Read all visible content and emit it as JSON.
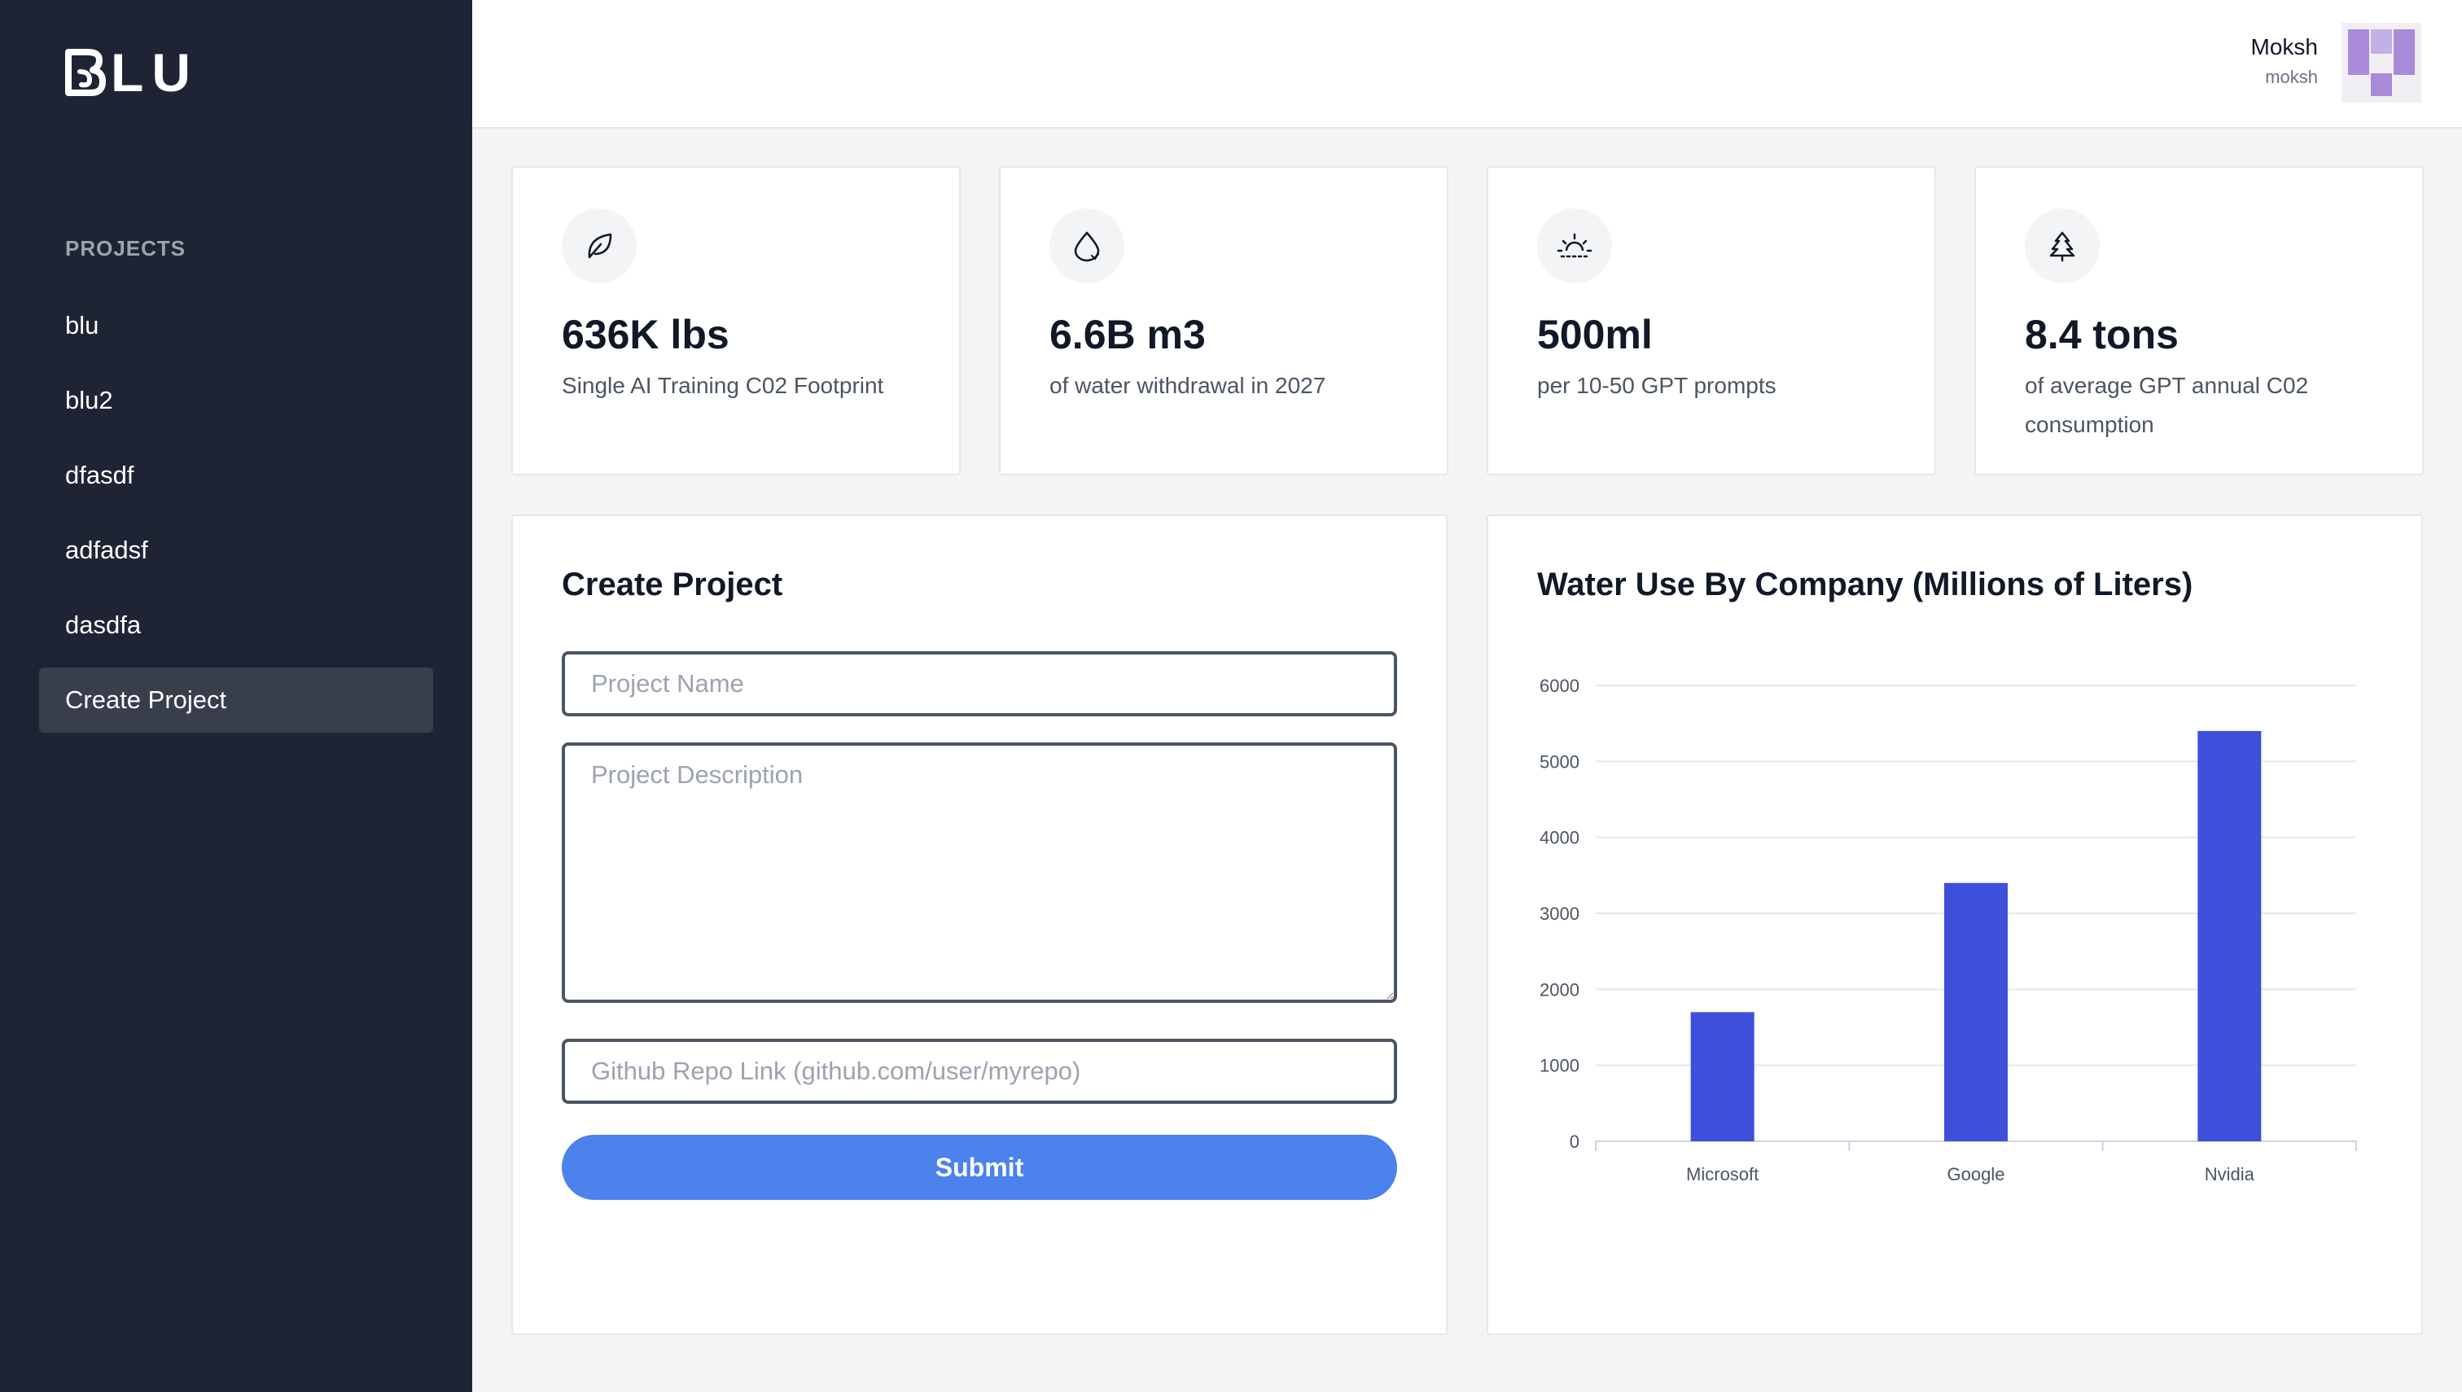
{
  "app": {
    "logo_letters": "LU"
  },
  "sidebar": {
    "section_label": "PROJECTS",
    "items": [
      {
        "label": "blu"
      },
      {
        "label": "blu2"
      },
      {
        "label": "dfasdf"
      },
      {
        "label": "adfadsf"
      },
      {
        "label": "dasdfa"
      },
      {
        "label": "Create Project",
        "active": true
      }
    ]
  },
  "user": {
    "name": "Moksh",
    "handle": "moksh"
  },
  "stats": [
    {
      "icon": "leaf-icon",
      "value": "636K lbs",
      "desc": "Single AI Training C02 Footprint"
    },
    {
      "icon": "water-drop-icon",
      "value": "6.6B m3",
      "desc": "of water withdrawal in 2027"
    },
    {
      "icon": "sunrise-icon",
      "value": "500ml",
      "desc": "per 10-50 GPT prompts"
    },
    {
      "icon": "tree-icon",
      "value": "8.4 tons",
      "desc": "of average GPT annual C02 consumption"
    }
  ],
  "form": {
    "title": "Create Project",
    "name_placeholder": "Project Name",
    "description_placeholder": "Project Description",
    "repo_placeholder": "Github Repo Link (github.com/user/myrepo)",
    "submit_label": "Submit"
  },
  "chart_panel": {
    "title": "Water Use By Company (Millions of Liters)"
  },
  "chart_data": {
    "type": "bar",
    "title": "Water Use By Company (Millions of Liters)",
    "categories": [
      "Microsoft",
      "Google",
      "Nvidia"
    ],
    "values": [
      1700,
      3400,
      5400
    ],
    "ylim": [
      0,
      6000
    ],
    "yticks": [
      0,
      1000,
      2000,
      3000,
      4000,
      5000,
      6000
    ],
    "grid": true,
    "bar_color": "#3e4fd9"
  },
  "colors": {
    "sidebar_bg": "#1f2435",
    "accent": "#4b82ec",
    "bar": "#3e4fd9"
  }
}
